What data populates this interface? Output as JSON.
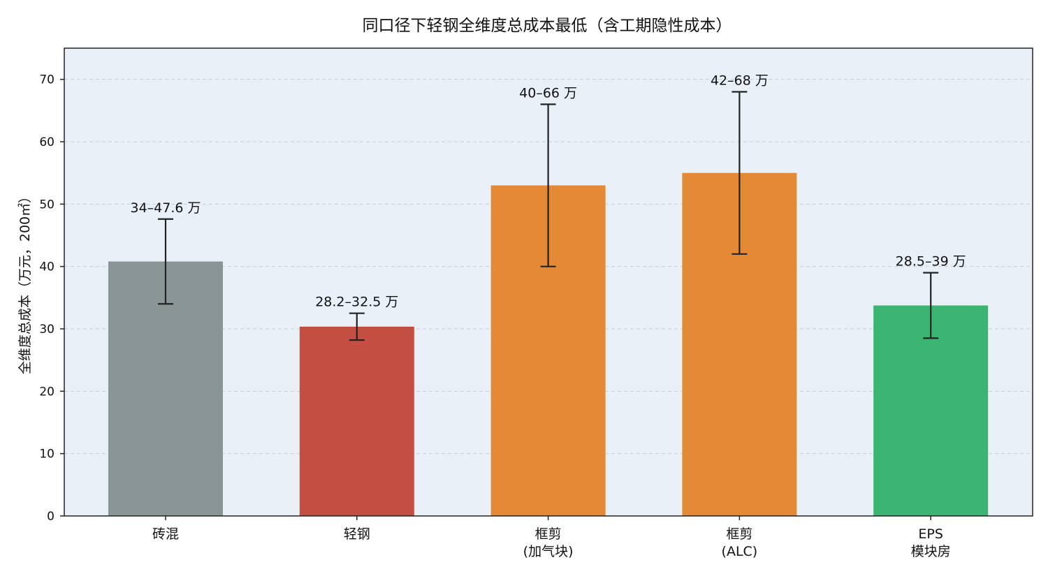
{
  "chart_data": {
    "type": "bar",
    "title": "同口径下轻钢全维度总成本最低（含工期隐性成本）",
    "ylabel": "全维度总成本（万元，200㎡）",
    "xlabel": "",
    "ylim": [
      0,
      75
    ],
    "yticks": [
      0,
      10,
      20,
      30,
      40,
      50,
      60,
      70
    ],
    "grid": true,
    "categories": [
      [
        "砖混"
      ],
      [
        "轻钢"
      ],
      [
        "框剪",
        "(加气块)"
      ],
      [
        "框剪",
        "(ALC)"
      ],
      [
        "EPS",
        "模块房"
      ]
    ],
    "values": [
      40.8,
      30.35,
      53.0,
      55.0,
      33.75
    ],
    "error_low": [
      34,
      28.2,
      40,
      42,
      28.5
    ],
    "error_high": [
      47.6,
      32.5,
      66,
      68,
      39
    ],
    "data_labels": [
      "34–47.6 万",
      "28.2–32.5 万",
      "40–66 万",
      "42–68 万",
      "28.5–39 万"
    ],
    "colors": [
      "#8a9696",
      "#c44e42",
      "#e48a36",
      "#e48a36",
      "#3cb572"
    ],
    "background": "#eaf0f8"
  }
}
